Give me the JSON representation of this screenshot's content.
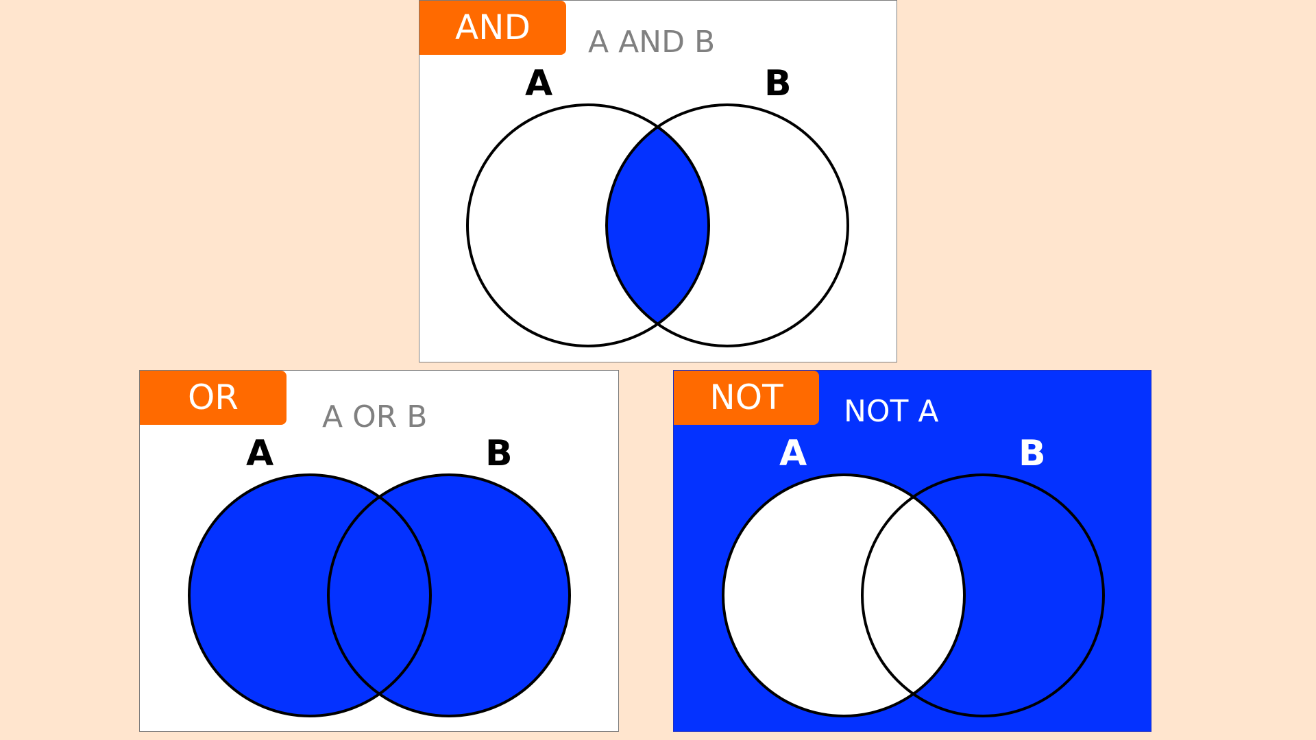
{
  "colors": {
    "background": "#FFE5CE",
    "tag": "#FF6A00",
    "fill": "#0432FF",
    "panel_white": "#FFFFFF",
    "caption_gray": "#808080",
    "outline": "#000000"
  },
  "panels": {
    "and": {
      "tag": "AND",
      "caption": "A AND B",
      "label_a": "A",
      "label_b": "B",
      "shaded_region": "intersection"
    },
    "or": {
      "tag": "OR",
      "caption": "A OR B",
      "label_a": "A",
      "label_b": "B",
      "shaded_region": "union"
    },
    "not": {
      "tag": "NOT",
      "caption": "NOT A",
      "label_a": "A",
      "label_b": "B",
      "shaded_region": "complement of A"
    }
  }
}
